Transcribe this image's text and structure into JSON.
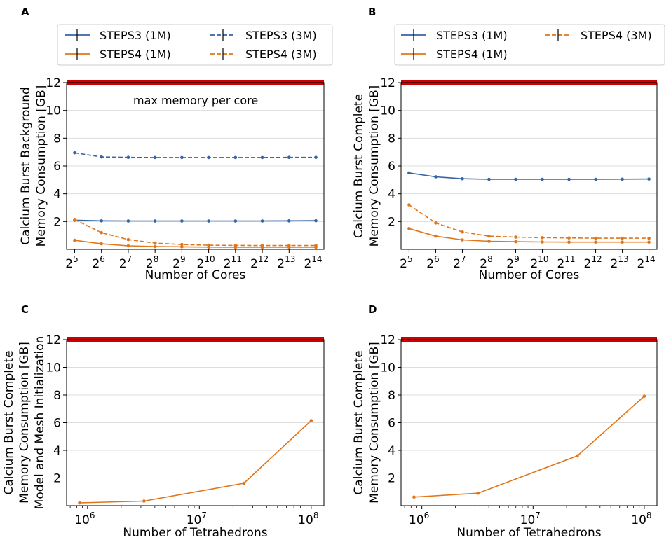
{
  "colors": {
    "steps3": "#3465a4",
    "steps4": "#e0761a",
    "max_memory": "#cc0000",
    "grid": "#dddddd"
  },
  "chart_data": [
    {
      "panel": "A",
      "type": "line",
      "xscale": "log2",
      "xlabel": "Number of Cores",
      "ylabel_lines": [
        "Calcium Burst Background",
        "Memory Consumption [GB]"
      ],
      "x": [
        32,
        64,
        128,
        256,
        512,
        1024,
        2048,
        4096,
        8192,
        16384
      ],
      "xticks": [
        {
          "base": "2",
          "exp": "5"
        },
        {
          "base": "2",
          "exp": "6"
        },
        {
          "base": "2",
          "exp": "7"
        },
        {
          "base": "2",
          "exp": "8"
        },
        {
          "base": "2",
          "exp": "9"
        },
        {
          "base": "2",
          "exp": "10"
        },
        {
          "base": "2",
          "exp": "11"
        },
        {
          "base": "2",
          "exp": "12"
        },
        {
          "base": "2",
          "exp": "13"
        },
        {
          "base": "2",
          "exp": "14"
        }
      ],
      "yticks": [
        "2",
        "4",
        "6",
        "8",
        "10",
        "12"
      ],
      "ylim": [
        0,
        12
      ],
      "max_memory": 12,
      "annotation": "max memory per core",
      "legend": [
        {
          "label": "STEPS3 (1M)",
          "series": "steps3",
          "dash": false
        },
        {
          "label": "STEPS3 (3M)",
          "series": "steps3",
          "dash": true
        },
        {
          "label": "STEPS4 (1M)",
          "series": "steps4",
          "dash": false
        },
        {
          "label": "STEPS4 (3M)",
          "series": "steps4",
          "dash": true
        }
      ],
      "series": [
        {
          "name": "STEPS3 (1M)",
          "color": "steps3",
          "dash": false,
          "values": [
            2.1,
            2.05,
            2.04,
            2.04,
            2.04,
            2.04,
            2.04,
            2.04,
            2.05,
            2.06
          ]
        },
        {
          "name": "STEPS3 (3M)",
          "color": "steps3",
          "dash": true,
          "values": [
            6.95,
            6.65,
            6.62,
            6.61,
            6.61,
            6.61,
            6.61,
            6.61,
            6.62,
            6.62
          ]
        },
        {
          "name": "STEPS4 (1M)",
          "color": "steps4",
          "dash": false,
          "values": [
            0.65,
            0.4,
            0.25,
            0.2,
            0.18,
            0.16,
            0.15,
            0.15,
            0.15,
            0.15
          ]
        },
        {
          "name": "STEPS4 (3M)",
          "color": "steps4",
          "dash": true,
          "values": [
            2.15,
            1.2,
            0.7,
            0.45,
            0.35,
            0.3,
            0.28,
            0.27,
            0.27,
            0.27
          ]
        }
      ]
    },
    {
      "panel": "B",
      "type": "line",
      "xscale": "log2",
      "xlabel": "Number of Cores",
      "ylabel_lines": [
        "Calcium Burst Complete",
        "Memory Consumption [GB]"
      ],
      "x": [
        32,
        64,
        128,
        256,
        512,
        1024,
        2048,
        4096,
        8192,
        16384
      ],
      "xticks": [
        {
          "base": "2",
          "exp": "5"
        },
        {
          "base": "2",
          "exp": "6"
        },
        {
          "base": "2",
          "exp": "7"
        },
        {
          "base": "2",
          "exp": "8"
        },
        {
          "base": "2",
          "exp": "9"
        },
        {
          "base": "2",
          "exp": "10"
        },
        {
          "base": "2",
          "exp": "11"
        },
        {
          "base": "2",
          "exp": "12"
        },
        {
          "base": "2",
          "exp": "13"
        },
        {
          "base": "2",
          "exp": "14"
        }
      ],
      "yticks": [
        "2",
        "4",
        "6",
        "8",
        "10",
        "12"
      ],
      "ylim": [
        0,
        12
      ],
      "max_memory": 12,
      "legend": [
        {
          "label": "STEPS3 (1M)",
          "series": "steps3",
          "dash": false
        },
        {
          "label": "STEPS4 (3M)",
          "series": "steps4",
          "dash": true
        },
        {
          "label": "STEPS4 (1M)",
          "series": "steps4",
          "dash": false
        }
      ],
      "series": [
        {
          "name": "STEPS3 (1M)",
          "color": "steps3",
          "dash": false,
          "values": [
            5.5,
            5.22,
            5.08,
            5.04,
            5.04,
            5.04,
            5.04,
            5.04,
            5.05,
            5.06
          ]
        },
        {
          "name": "STEPS4 (1M)",
          "color": "steps4",
          "dash": false,
          "values": [
            1.5,
            0.95,
            0.68,
            0.58,
            0.55,
            0.53,
            0.52,
            0.52,
            0.52,
            0.52
          ]
        },
        {
          "name": "STEPS4 (3M)",
          "color": "steps4",
          "dash": true,
          "values": [
            3.2,
            1.9,
            1.25,
            0.95,
            0.88,
            0.84,
            0.82,
            0.8,
            0.8,
            0.8
          ]
        }
      ]
    },
    {
      "panel": "C",
      "type": "line",
      "xscale": "log10",
      "xlabel": "Number of Tetrahedrons",
      "ylabel_lines": [
        "Calcium Burst Complete",
        "Memory Consumption [GB]",
        "Model and Mesh Initialization"
      ],
      "xticks": [
        {
          "base": "10",
          "exp": "6",
          "value": 1000000
        },
        {
          "base": "10",
          "exp": "7",
          "value": 10000000
        },
        {
          "base": "10",
          "exp": "8",
          "value": 100000000
        }
      ],
      "xlim": [
        650000,
        130000000
      ],
      "yticks": [
        "2",
        "4",
        "6",
        "8",
        "10",
        "12"
      ],
      "ylim": [
        0,
        12
      ],
      "max_memory": 12,
      "series": [
        {
          "name": "STEPS4",
          "color": "steps4",
          "dash": false,
          "x": [
            850000,
            3200000,
            25000000,
            100000000
          ],
          "values": [
            0.2,
            0.33,
            1.62,
            6.15
          ]
        }
      ]
    },
    {
      "panel": "D",
      "type": "line",
      "xscale": "log10",
      "xlabel": "Number of Tetrahedrons",
      "ylabel_lines": [
        "Calcium Burst Complete",
        "Memory Consumption [GB]"
      ],
      "xticks": [
        {
          "base": "10",
          "exp": "6",
          "value": 1000000
        },
        {
          "base": "10",
          "exp": "7",
          "value": 10000000
        },
        {
          "base": "10",
          "exp": "8",
          "value": 100000000
        }
      ],
      "xlim": [
        650000,
        130000000
      ],
      "yticks": [
        "2",
        "4",
        "6",
        "8",
        "10",
        "12"
      ],
      "ylim": [
        0,
        12
      ],
      "max_memory": 12,
      "series": [
        {
          "name": "STEPS4",
          "color": "steps4",
          "dash": false,
          "x": [
            850000,
            3200000,
            25000000,
            100000000
          ],
          "values": [
            0.62,
            0.9,
            3.6,
            7.92
          ]
        }
      ]
    }
  ]
}
